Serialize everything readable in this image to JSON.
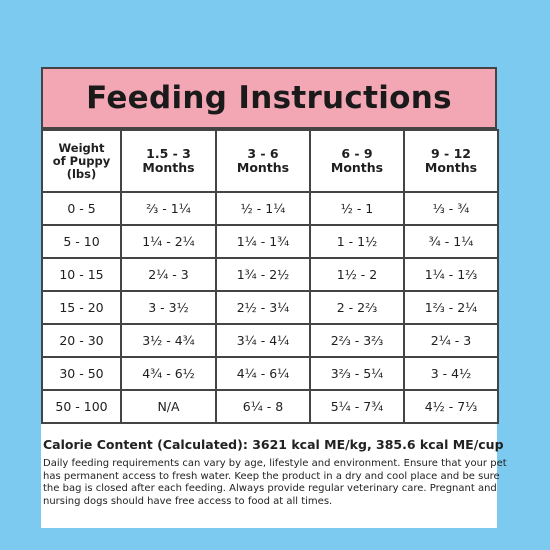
{
  "title": "Feeding Instructions",
  "table": {
    "headers": [
      {
        "lines": [
          "Weight",
          "of Puppy",
          "(lbs)"
        ]
      },
      {
        "lines": [
          "1.5 - 3",
          "Months"
        ]
      },
      {
        "lines": [
          "3 - 6",
          "Months"
        ]
      },
      {
        "lines": [
          "6 - 9",
          "Months"
        ]
      },
      {
        "lines": [
          "9 - 12",
          "Months"
        ]
      }
    ],
    "rows": [
      [
        "0 - 5",
        "⅔  - 1¼",
        "½  - 1¼",
        "½  -  1",
        "⅓  -  ¾"
      ],
      [
        "5 - 10",
        "1¼ - 2¼",
        "1¼ - 1¾",
        "1  - 1½",
        "¾  - 1¼"
      ],
      [
        "10 - 15",
        "2¼ -  3",
        "1¾ - 2½",
        "1½ -  2",
        "1¼ - 1⅔"
      ],
      [
        "15 - 20",
        "3  - 3½",
        "2½ - 3¼",
        "2  - 2⅔",
        "1⅔ - 2¼"
      ],
      [
        "20 - 30",
        "3½ - 4¾",
        "3¼ - 4¼",
        "2⅔ - 3⅔",
        "2¼ -  3"
      ],
      [
        "30 - 50",
        "4¾ - 6½",
        "4¼ - 6¼",
        "3⅔ - 5¼",
        "3  - 4½"
      ],
      [
        "50 - 100",
        "N/A",
        "6¼ -  8",
        "5¼ - 7¾",
        "4½ - 7⅓"
      ]
    ]
  },
  "calorie_content": "Calorie Content (Calculated): 3621 kcal ME/kg, 385.6 kcal ME/cup",
  "note": "Daily feeding requirements can vary by age, lifestyle and environment. Ensure that your pet has permanent access to fresh water. Keep the product in a dry and cool place and be sure the bag is closed after each feeding. Always provide regular veterinary care. Pregnant and nursing dogs should have free access to food at all times.",
  "colors": {
    "background": "#7ccaf0",
    "title_band": "#f3a6b4",
    "card": "#ffffff",
    "grid": "#444444"
  }
}
